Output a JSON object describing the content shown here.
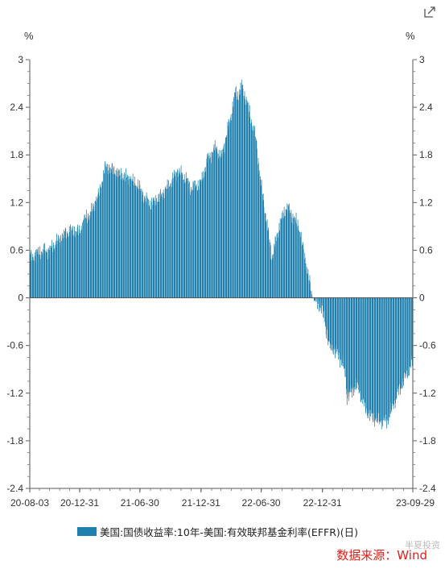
{
  "chart_data": {
    "type": "bar",
    "title": "",
    "unit_left": "%",
    "unit_right": "%",
    "ylim": [
      -2.4,
      3
    ],
    "yticks": [
      3,
      2.4,
      1.8,
      1.2,
      0.6,
      0,
      -0.6,
      -1.2,
      -1.8,
      -2.4
    ],
    "ytick_labels": [
      "3",
      "2.4",
      "1.8",
      "1.2",
      "0.6",
      "0",
      "-0.6",
      "-1.2",
      "-1.8",
      "-2.4"
    ],
    "x_start": "2020-08-03",
    "x_end": "2023-09-29",
    "xtick_labels": [
      "20-08-03",
      "20-12-31",
      "21-06-30",
      "21-12-31",
      "22-06-30",
      "22-12-31",
      "23-09-29"
    ],
    "xtick_dates": [
      "2020-08-03",
      "2020-12-31",
      "2021-06-30",
      "2021-12-31",
      "2022-06-30",
      "2022-12-31",
      "2023-09-29"
    ],
    "grid": false,
    "legend_position": "bottom",
    "series": [
      {
        "name": "美国:国债收益率:10年-美国:有效联邦基金利率(EFFR)(日)",
        "color": "#1f7fad",
        "x": [
          "2020-08-03",
          "2020-09-01",
          "2020-10-01",
          "2020-11-02",
          "2020-12-01",
          "2020-12-31",
          "2021-01-15",
          "2021-02-01",
          "2021-02-15",
          "2021-03-01",
          "2021-03-18",
          "2021-04-01",
          "2021-05-03",
          "2021-06-01",
          "2021-06-30",
          "2021-07-15",
          "2021-08-02",
          "2021-09-01",
          "2021-10-01",
          "2021-10-21",
          "2021-11-15",
          "2021-12-01",
          "2021-12-31",
          "2022-01-20",
          "2022-02-15",
          "2022-03-01",
          "2022-03-31",
          "2022-04-14",
          "2022-04-22",
          "2022-05-02",
          "2022-05-16",
          "2022-06-14",
          "2022-06-30",
          "2022-07-15",
          "2022-08-01",
          "2022-08-26",
          "2022-09-15",
          "2022-10-21",
          "2022-11-04",
          "2022-12-01",
          "2022-12-31",
          "2023-01-20",
          "2023-02-15",
          "2023-03-08",
          "2023-03-15",
          "2023-04-14",
          "2023-05-15",
          "2023-06-15",
          "2023-07-14",
          "2023-08-15",
          "2023-09-29"
        ],
        "values": [
          0.5,
          0.58,
          0.6,
          0.75,
          0.85,
          0.83,
          1.0,
          1.05,
          1.2,
          1.33,
          1.65,
          1.63,
          1.55,
          1.5,
          1.38,
          1.25,
          1.18,
          1.28,
          1.45,
          1.6,
          1.5,
          1.38,
          1.45,
          1.75,
          1.9,
          1.75,
          2.3,
          2.6,
          2.55,
          2.67,
          2.5,
          2.0,
          1.4,
          1.0,
          0.5,
          0.95,
          1.15,
          0.9,
          0.6,
          0.0,
          -0.15,
          -0.6,
          -0.7,
          -0.9,
          -1.25,
          -1.1,
          -1.45,
          -1.55,
          -1.55,
          -1.2,
          -0.8
        ]
      }
    ]
  },
  "legend": {
    "label": "美国:国债收益率:10年-美国:有效联邦基金利率(EFFR)(日)"
  },
  "source": "数据来源：Wind",
  "watermark": "半夏投资"
}
